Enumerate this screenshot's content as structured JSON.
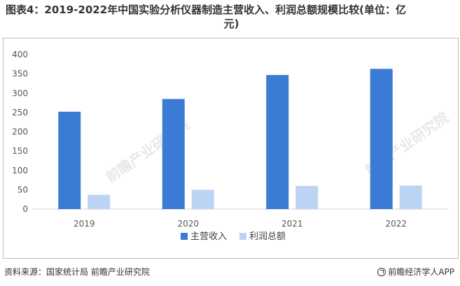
{
  "header": {
    "title_line1": "图表4：2019-2022年中国实验分析仪器制造主营收入、利润总额规模比较(单位：亿",
    "title_line2": "元)"
  },
  "chart_data": {
    "type": "bar",
    "title": "图表4：2019-2022年中国实验分析仪器制造主营收入、利润总额规模比较(单位：亿元)",
    "categories": [
      "2019",
      "2020",
      "2021",
      "2022"
    ],
    "series": [
      {
        "name": "主营收入",
        "values": [
          252,
          285,
          347,
          363
        ]
      },
      {
        "name": "利润总额",
        "values": [
          37,
          50,
          60,
          61
        ]
      }
    ],
    "ylim": [
      0,
      400
    ],
    "yticks": [
      0,
      50,
      100,
      150,
      200,
      250,
      300,
      350,
      400
    ],
    "grid": false,
    "legend_position": "bottom",
    "colors": [
      "#3a7bd5",
      "#bcd4f3"
    ]
  },
  "watermark": {
    "text": "前瞻产业研究院"
  },
  "footer": {
    "source": "资料来源：国家统计局 前瞻产业研究院",
    "brand": "前瞻经济学人APP"
  }
}
